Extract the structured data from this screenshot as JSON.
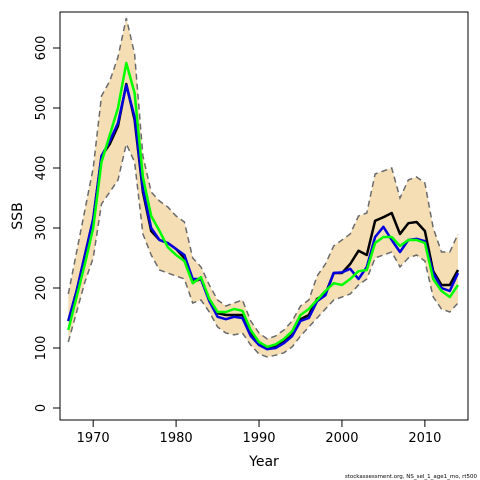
{
  "chart_data": {
    "type": "line",
    "xlabel": "Year",
    "ylabel": "SSB",
    "xlim": [
      1966,
      2015.2
    ],
    "ylim": [
      -20,
      660
    ],
    "xticks": [
      1970,
      1980,
      1990,
      2000,
      2010
    ],
    "yticks": [
      0,
      100,
      200,
      300,
      400,
      500,
      600
    ],
    "x": [
      1967,
      1968,
      1969,
      1970,
      1971,
      1972,
      1973,
      1974,
      1975,
      1976,
      1977,
      1978,
      1979,
      1980,
      1981,
      1982,
      1983,
      1984,
      1985,
      1986,
      1987,
      1988,
      1989,
      1990,
      1991,
      1992,
      1993,
      1994,
      1995,
      1996,
      1997,
      1998,
      1999,
      2000,
      2001,
      2002,
      2003,
      2004,
      2005,
      2006,
      2007,
      2008,
      2009,
      2010,
      2011,
      2012,
      2013,
      2014
    ],
    "band": {
      "name": "confidence interval",
      "color": "#f5deb3",
      "upper": [
        190,
        260,
        330,
        400,
        520,
        545,
        585,
        650,
        590,
        420,
        360,
        345,
        335,
        320,
        310,
        250,
        235,
        205,
        180,
        170,
        175,
        180,
        145,
        125,
        115,
        120,
        130,
        145,
        170,
        180,
        220,
        240,
        270,
        280,
        290,
        320,
        325,
        390,
        395,
        400,
        350,
        380,
        385,
        375,
        300,
        260,
        260,
        290
      ],
      "lower": [
        110,
        160,
        210,
        250,
        340,
        360,
        380,
        440,
        410,
        290,
        255,
        230,
        225,
        220,
        215,
        175,
        180,
        160,
        135,
        125,
        122,
        125,
        105,
        90,
        85,
        88,
        92,
        102,
        120,
        135,
        150,
        165,
        180,
        185,
        190,
        205,
        215,
        250,
        255,
        260,
        235,
        250,
        255,
        245,
        185,
        165,
        160,
        175
      ]
    },
    "series": [
      {
        "name": "black",
        "color": "#000000",
        "values": [
          145,
          195,
          255,
          315,
          420,
          440,
          470,
          540,
          480,
          360,
          295,
          280,
          275,
          265,
          250,
          210,
          215,
          180,
          158,
          155,
          155,
          155,
          125,
          107,
          100,
          102,
          110,
          122,
          148,
          155,
          182,
          190,
          225,
          225,
          240,
          262,
          255,
          312,
          318,
          325,
          290,
          308,
          310,
          295,
          228,
          205,
          205,
          230
        ]
      },
      {
        "name": "blue",
        "color": "#0000dd",
        "values": [
          145,
          195,
          255,
          315,
          420,
          445,
          475,
          538,
          485,
          365,
          300,
          280,
          275,
          265,
          255,
          215,
          215,
          178,
          152,
          148,
          152,
          150,
          120,
          105,
          98,
          100,
          108,
          120,
          145,
          150,
          178,
          188,
          225,
          226,
          232,
          215,
          235,
          285,
          302,
          280,
          260,
          280,
          282,
          278,
          225,
          200,
          195,
          225
        ]
      },
      {
        "name": "green",
        "color": "#00ff00",
        "values": [
          130,
          185,
          240,
          300,
          410,
          455,
          500,
          575,
          525,
          385,
          320,
          295,
          268,
          255,
          245,
          208,
          218,
          182,
          160,
          160,
          165,
          162,
          130,
          110,
          102,
          106,
          115,
          128,
          155,
          165,
          180,
          195,
          208,
          205,
          215,
          228,
          230,
          275,
          285,
          285,
          270,
          280,
          280,
          275,
          215,
          195,
          185,
          205
        ]
      }
    ],
    "credit": "stockassessment.org, NS_sel_1_age1_mo, rt500"
  }
}
